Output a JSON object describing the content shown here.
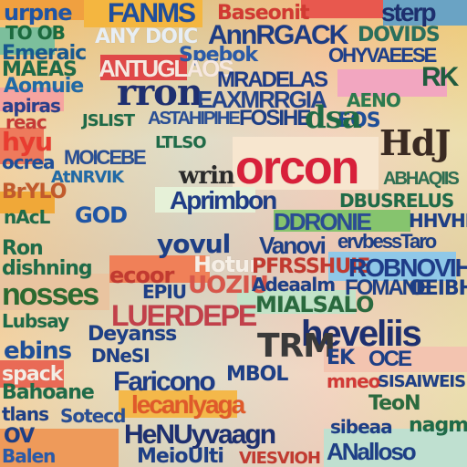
{
  "collage": {
    "words": [
      "urpne",
      "FANMS",
      "Baseonit",
      "sterp",
      "TO OB",
      "ANY DOIC",
      "AnnRGACK",
      "DOVIDS",
      "Emeraic",
      "Spebok",
      "OHYVAEESE",
      "MAEAS",
      "ANTUGLAOS",
      "RK",
      "Aomuie",
      "rron",
      "MRADELAS",
      "apiras",
      "EAXMRRGIA",
      "AENO",
      "reac",
      "JSLIST",
      "EOS",
      "hyu",
      "ASTAHIPIHE",
      "FOSIHE",
      "dsa",
      "HdJ",
      "ocrea",
      "MOICEBE",
      "LTLSO",
      "wrin",
      "orcon",
      "AtNRVIK",
      "ABHAQIIS",
      "BrYLO",
      "Aprimbon",
      "DBUSRELUS",
      "GOD",
      "nAcL",
      "DDRONIE",
      "HHVHNIA",
      "yovul",
      "Vanovi",
      "ervbessTaro",
      "Ron",
      "Hotur",
      "PFRSSHUIE",
      "ROBNOVIH",
      "dishning",
      "ecoor",
      "UOZIU",
      "OEIBHK",
      "nosses",
      "EPIU",
      "Adeaalm",
      "FOMANE",
      "LUERDEPE",
      "MIALSALO",
      "Lubsay",
      "Deyanss",
      "heveliis",
      "ebins",
      "DNeSI",
      "TRM",
      "EK",
      "OCE",
      "spack",
      "Faricono",
      "MBOL",
      "mneo",
      "SISAIWEIS",
      "Bahoane",
      "lecanlyaga",
      "TeoN",
      "tlans",
      "Sotecd",
      "sibeaa",
      "nagmih",
      "OV",
      "HeNUyvaagn",
      "ANalloso",
      "Balen",
      "MeioUlti",
      "VIESVIOH"
    ]
  }
}
